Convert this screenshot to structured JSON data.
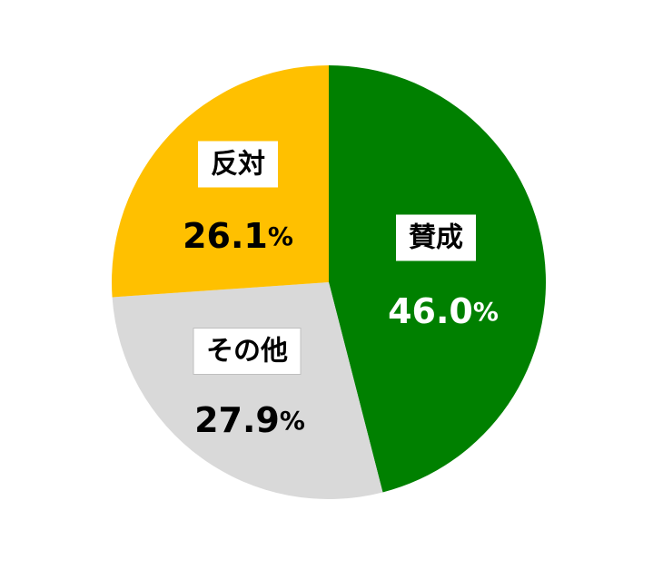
{
  "chart_data": {
    "type": "pie",
    "start_angle_deg": 0,
    "direction": "clockwise",
    "slices": [
      {
        "label": "賛成",
        "value": 46.0,
        "value_text": "46.0",
        "unit": "%",
        "color": "#008000",
        "value_color": "#ffffff"
      },
      {
        "label": "その他",
        "value": 27.9,
        "value_text": "27.9",
        "unit": "%",
        "color": "#d9d9d9",
        "value_color": "#000000"
      },
      {
        "label": "反対",
        "value": 26.1,
        "value_text": "26.1",
        "unit": "%",
        "color": "#ffc000",
        "value_color": "#000000"
      }
    ]
  }
}
